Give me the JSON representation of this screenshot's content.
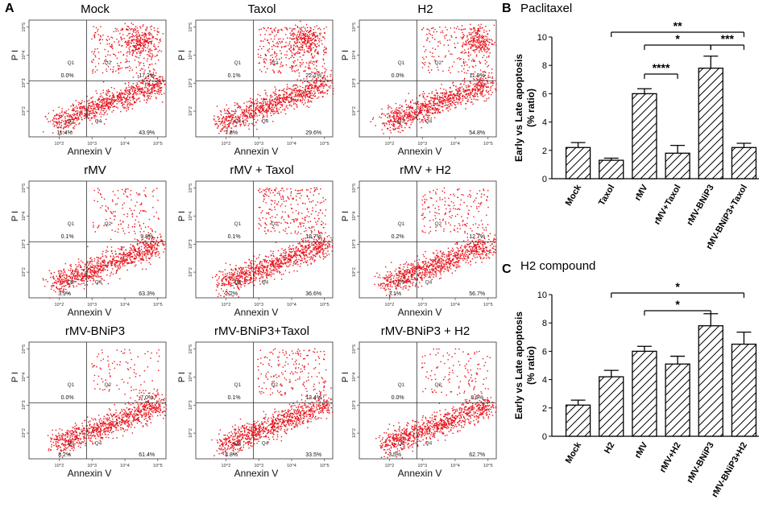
{
  "panel_labels": {
    "a": "A",
    "b": "B",
    "c": "C"
  },
  "facs_common": {
    "axis_x_label": "Annexin V",
    "axis_y_label": "P I",
    "quadrant_labels": [
      "Q1",
      "Q2",
      "Q3",
      "Q4"
    ],
    "x_ticks": [
      "10^2",
      "10^3",
      "10^4",
      "10^5"
    ],
    "y_ticks": [
      "10^2",
      "10^3",
      "10^4",
      "10^5"
    ],
    "dot_color": "#e8141c"
  },
  "facs_plots": [
    {
      "title": "Mock",
      "q1": "0.0%",
      "q2": "17.2%",
      "q3": "11.4%",
      "q4": "43.9%"
    },
    {
      "title": "Taxol",
      "q1": "0.1%",
      "q2": "22.1%",
      "q3": "7.8%",
      "q4": "29.6%"
    },
    {
      "title": "H2",
      "q1": "0.0%",
      "q2": "11.9%",
      "q3": "",
      "q4": "54.8%"
    },
    {
      "title": "rMV",
      "q1": "0.1%",
      "q2": "9.8%",
      "q3": "3.9%",
      "q4": "63.3%"
    },
    {
      "title": "rMV + Taxol",
      "q1": "0.1%",
      "q2": "18.7%",
      "q3": "2.2%",
      "q4": "36.6%"
    },
    {
      "title": "rMV + H2",
      "q1": "0.2%",
      "q2": "12.7%",
      "q3": "3.1%",
      "q4": "56.7%"
    },
    {
      "title": "rMV-BNiP3",
      "q1": "0.0%",
      "q2": "7.0%",
      "q3": "8.2%",
      "q4": "61.4%"
    },
    {
      "title": "rMV-BNiP3+Taxol",
      "q1": "0.1%",
      "q2": "13.4%",
      "q3": "4.8%",
      "q4": "33.5%"
    },
    {
      "title": "rMV-BNiP3 + H2",
      "q1": "0.0%",
      "q2": "8.6%",
      "q3": "3.5%",
      "q4": "62.7%"
    }
  ],
  "chart_data": [
    {
      "id": "B",
      "type": "bar",
      "title": "Paclitaxel",
      "ylabel_line1": "Early vs Late apoptosis",
      "ylabel_line2": "(% ratio)",
      "ylim": [
        0,
        10
      ],
      "yticks": [
        0,
        2,
        4,
        6,
        8,
        10
      ],
      "categories": [
        "Mock",
        "Taxol",
        "rMV",
        "rMV+Taxol",
        "rMV-BNiP3",
        "rMV-BNiP3+Taxol"
      ],
      "values": [
        2.2,
        1.3,
        6.0,
        1.8,
        7.8,
        2.2
      ],
      "errors": [
        0.35,
        0.15,
        0.35,
        0.55,
        0.85,
        0.3
      ],
      "significance": [
        {
          "from": 1,
          "to": 5,
          "label": "**"
        },
        {
          "from": 2,
          "to": 4,
          "label": "*"
        },
        {
          "from": 4,
          "to": 5,
          "label": "***"
        },
        {
          "from": 2,
          "to": 3,
          "label": "****"
        }
      ]
    },
    {
      "id": "C",
      "type": "bar",
      "title": "H2 compound",
      "ylabel_line1": "Early vs Late apoptosis",
      "ylabel_line2": "(% ratio)",
      "ylim": [
        0,
        10
      ],
      "yticks": [
        0,
        2,
        4,
        6,
        8,
        10
      ],
      "categories": [
        "Mock",
        "H2",
        "rMV",
        "rMV+H2",
        "rMV-BNiP3",
        "rMV-BNiP3+H2"
      ],
      "values": [
        2.2,
        4.2,
        6.0,
        5.1,
        7.8,
        6.5
      ],
      "errors": [
        0.35,
        0.45,
        0.35,
        0.55,
        0.85,
        0.85
      ],
      "significance": [
        {
          "from": 1,
          "to": 5,
          "label": "*"
        },
        {
          "from": 2,
          "to": 4,
          "label": "*"
        }
      ]
    }
  ]
}
